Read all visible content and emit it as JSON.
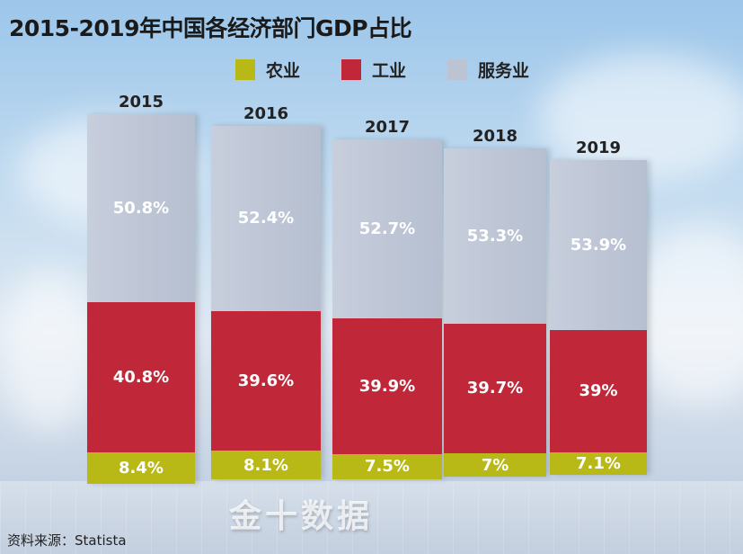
{
  "chart_data": {
    "type": "bar",
    "stacked": true,
    "title": "2015-2019年中国各经济部门GDP占比",
    "categories": [
      "2015",
      "2016",
      "2017",
      "2018",
      "2019"
    ],
    "series": [
      {
        "name": "农业",
        "color": "#b8b816",
        "values": [
          8.4,
          8.1,
          7.5,
          7,
          7.1
        ],
        "labels": [
          "8.4%",
          "8.1%",
          "7.5%",
          "7%",
          "7.1%"
        ]
      },
      {
        "name": "工业",
        "color": "#c0283a",
        "values": [
          40.8,
          39.6,
          39.9,
          39.7,
          39
        ],
        "labels": [
          "40.8%",
          "39.6%",
          "39.9%",
          "39.7%",
          "39%"
        ]
      },
      {
        "name": "服务业",
        "color": "#bcc4d4",
        "values": [
          50.8,
          52.4,
          52.7,
          53.3,
          53.9
        ],
        "labels": [
          "50.8%",
          "52.4%",
          "52.7%",
          "53.3%",
          "53.9%"
        ]
      }
    ],
    "legend_position": "top",
    "unit": "%"
  },
  "source": "资料来源：Statista",
  "watermark": "金十数据"
}
